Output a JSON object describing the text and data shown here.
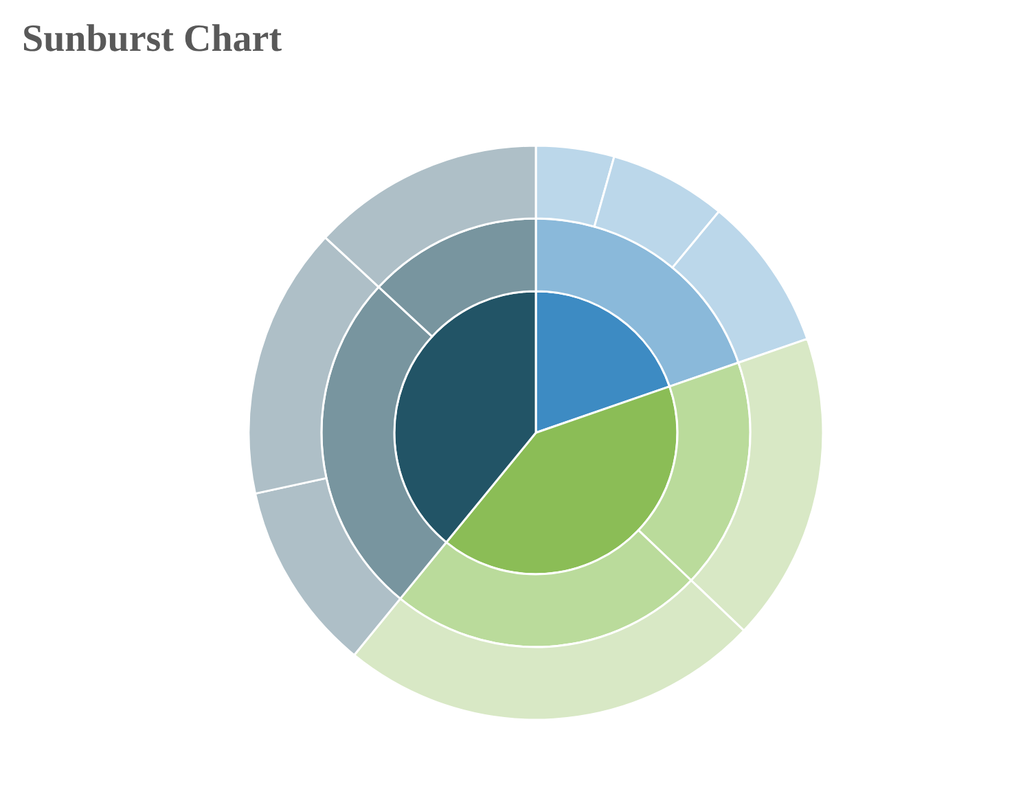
{
  "chart_data": {
    "type": "pie",
    "title": "Sunburst Chart",
    "series": [
      {
        "values": [
          19.7,
          41.2,
          39.1
        ],
        "colors": [
          "#3d8bc3",
          "#8bbd56",
          "#225466"
        ]
      },
      {
        "values": [
          19.7,
          17.4,
          23.8,
          26.0,
          13.1
        ],
        "colors": [
          "#8ab9da",
          "#badb9b",
          "#badb9b",
          "#78959f",
          "#78959f"
        ]
      },
      {
        "values": [
          4.4,
          6.6,
          8.7,
          17.4,
          23.8,
          10.7,
          15.3,
          13.1
        ],
        "colors": [
          "#bbd7ea",
          "#bbd7ea",
          "#bbd7ea",
          "#d8e8c5",
          "#d8e8c5",
          "#aebfc7",
          "#aebfc7",
          "#aebfc7"
        ]
      }
    ]
  }
}
